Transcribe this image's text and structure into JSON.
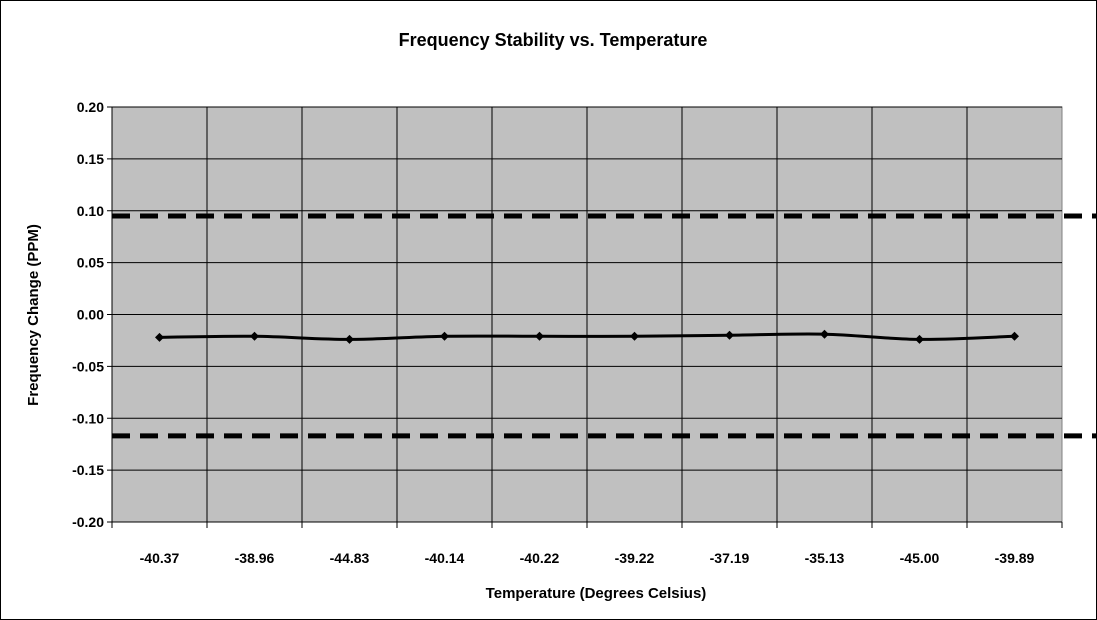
{
  "chart_data": {
    "type": "line",
    "title": "Frequency Stability vs. Temperature",
    "xlabel": "Temperature (Degrees Celsius)",
    "ylabel": "Frequency Change (PPM)",
    "categories": [
      "-40.37",
      "-38.96",
      "-44.83",
      "-40.14",
      "-40.22",
      "-39.22",
      "-37.19",
      "-35.13",
      "-45.00",
      "-39.89"
    ],
    "ylim": [
      -0.2,
      0.2
    ],
    "yticks": [
      "0.20",
      "0.15",
      "0.10",
      "0.05",
      "0.00",
      "-0.05",
      "-0.10",
      "-0.15",
      "-0.20"
    ],
    "ytick_values": [
      0.2,
      0.15,
      0.1,
      0.05,
      0.0,
      -0.05,
      -0.1,
      -0.15,
      -0.2
    ],
    "series": [
      {
        "values": [
          -0.022,
          -0.021,
          -0.024,
          -0.021,
          -0.021,
          -0.021,
          -0.02,
          -0.019,
          -0.024,
          -0.021
        ]
      }
    ],
    "limit_lines": [
      0.095,
      -0.117
    ],
    "grid": true,
    "legend": "none",
    "colors": {
      "plot_background": "#c0c0c0",
      "series": "#000000",
      "grid": "#000000",
      "limit_line": "#000000"
    }
  }
}
